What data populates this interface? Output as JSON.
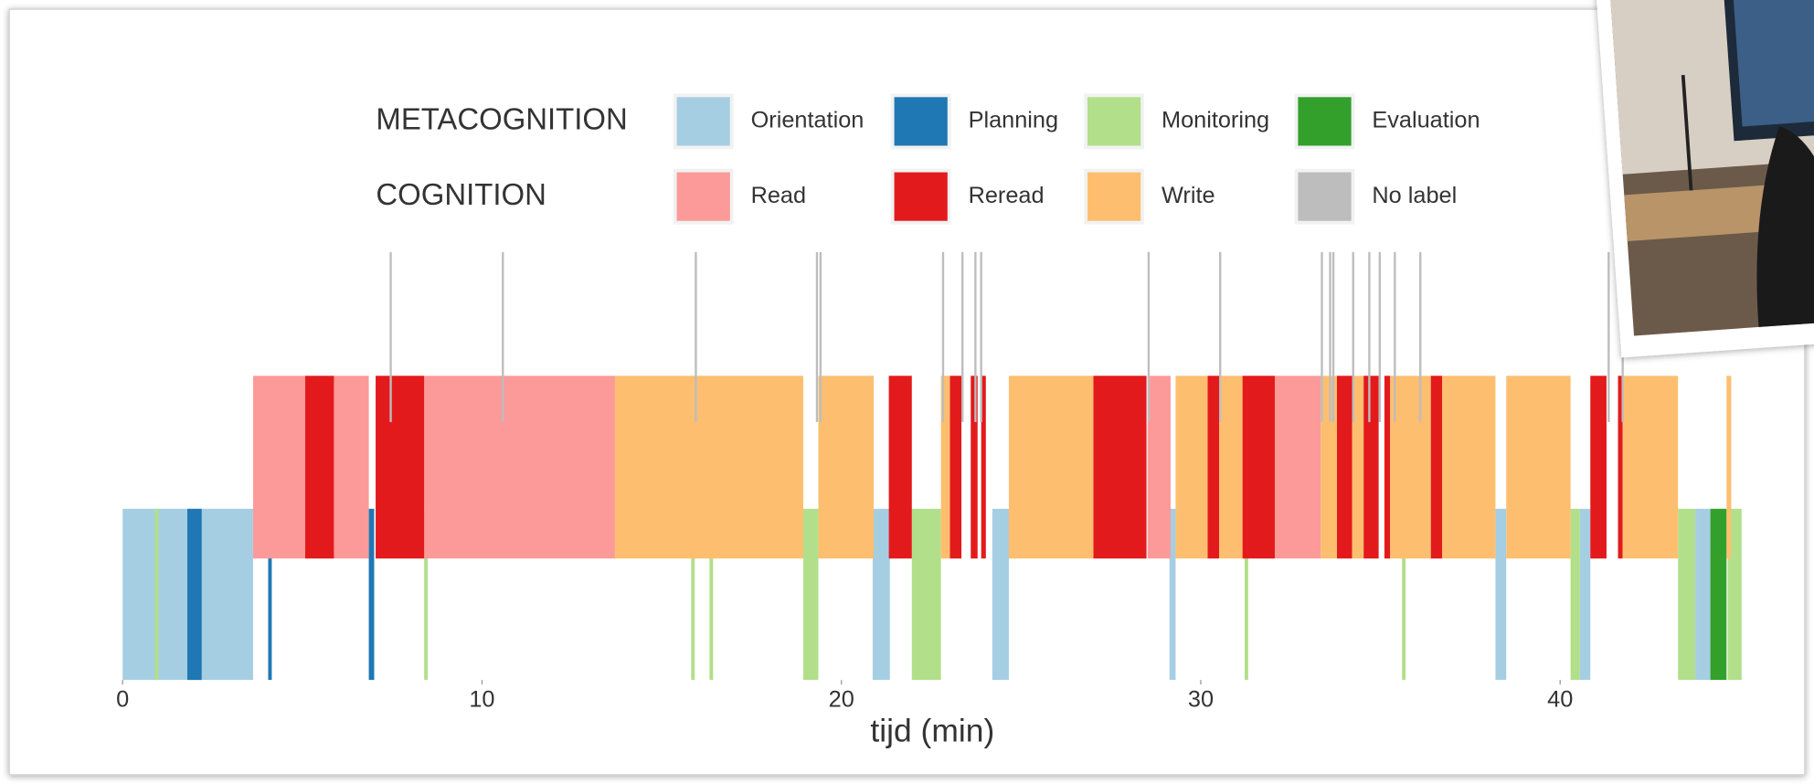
{
  "chart_data": {
    "type": "timeline",
    "x_label": "tijd (min)",
    "xlim": [
      0,
      45.1
    ],
    "xticks": [
      0,
      10,
      20,
      30,
      40
    ],
    "groups": [
      {
        "name": "METACOGNITION",
        "series": [
          {
            "name": "Orientation",
            "color": "#a6cee3",
            "starts": [
              0,
              20.87,
              24.2,
              29.13,
              38.2,
              40.55,
              43.76
            ],
            "ends": [
              3.63,
              21.35,
              24.66,
              29.3,
              38.5,
              40.84,
              44.18
            ]
          },
          {
            "name": "Planning",
            "color": "#1f78b4",
            "starts": [
              1.8,
              4.05,
              6.85
            ],
            "ends": [
              2.2,
              4.15,
              7.0
            ]
          },
          {
            "name": "Monitoring",
            "color": "#b2df8a",
            "starts": [
              0.9,
              8.39,
              15.82,
              16.33,
              18.94,
              21.96,
              31.22,
              35.6,
              40.29,
              43.28,
              44.66
            ],
            "ends": [
              1.0,
              8.49,
              15.92,
              16.43,
              19.36,
              22.77,
              31.32,
              35.7,
              40.55,
              43.76,
              45.05
            ]
          },
          {
            "name": "Evaluation",
            "color": "#33a02c",
            "starts": [
              44.18
            ],
            "ends": [
              44.63
            ]
          }
        ]
      },
      {
        "name": "COGNITION",
        "series": [
          {
            "name": "Read",
            "color": "#fb9a99",
            "starts": [
              3.63,
              5.88,
              8.39,
              28.52,
              32.06
            ],
            "ends": [
              5.08,
              6.85,
              13.7,
              29.16,
              33.34
            ]
          },
          {
            "name": "Reread",
            "color": "#e31a1c",
            "starts": [
              5.08,
              7.04,
              21.32,
              23.02,
              23.6,
              23.89,
              27.01,
              30.19,
              31.16,
              33.79,
              34.53,
              35.11,
              36.4,
              40.84,
              41.61
            ],
            "ends": [
              5.88,
              8.39,
              21.96,
              23.34,
              23.79,
              24.02,
              28.49,
              30.51,
              32.06,
              34.21,
              34.95,
              35.27,
              36.72,
              41.29,
              41.74
            ]
          },
          {
            "name": "Write",
            "color": "#fdbf6f",
            "starts": [
              13.7,
              19.36,
              22.77,
              24.66,
              29.3,
              30.51,
              33.34,
              34.21,
              35.27,
              36.72,
              38.5,
              41.74,
              44.63
            ],
            "ends": [
              18.94,
              20.9,
              23.02,
              27.01,
              30.19,
              31.16,
              33.79,
              34.53,
              36.4,
              38.2,
              40.29,
              43.28,
              44.76
            ]
          },
          {
            "name": "No label",
            "color": "#bdbdbd",
            "starts": [
              7.43,
              10.55,
              15.92,
              19.29,
              19.39,
              22.8,
              23.34,
              23.7,
              23.86,
              28.52,
              30.51,
              33.34,
              33.57,
              33.66,
              34.21,
              34.66,
              34.95,
              35.37,
              36.08,
              41.32,
              41.71
            ],
            "ends": [
              7.49,
              10.61,
              15.98,
              19.35,
              19.45,
              22.86,
              23.4,
              23.76,
              23.92,
              28.58,
              30.57,
              33.4,
              33.63,
              33.72,
              34.27,
              34.72,
              35.01,
              35.43,
              36.14,
              41.38,
              41.77
            ]
          }
        ]
      }
    ]
  }
}
